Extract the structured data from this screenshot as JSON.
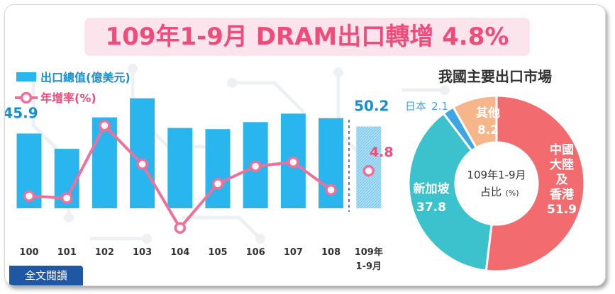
{
  "title": "109年1-9月 DRAM出口轉增 4.8%",
  "read_button": "全文閱讀",
  "chart_data": [
    {
      "type": "bar",
      "categories": [
        "100",
        "101",
        "102",
        "103",
        "104",
        "105",
        "106",
        "107",
        "108",
        "109年 1-9月"
      ],
      "series": [
        {
          "name": "出口總值(億美元)",
          "type": "bar",
          "color": "#29b6ee",
          "values": [
            45.9,
            36.5,
            55.8,
            67.5,
            49.3,
            48.6,
            52.9,
            58.1,
            55.3,
            50.2
          ]
        },
        {
          "name": "年增率(%)",
          "type": "line",
          "color": "#ef7099",
          "values": [
            -7.5,
            -8.5,
            26.8,
            8.0,
            -23.0,
            -1.5,
            7.0,
            9.0,
            -4.5,
            4.8
          ]
        }
      ],
      "data_labels": [
        {
          "index": 0,
          "series": 0,
          "text": "45.9"
        },
        {
          "index": 9,
          "series": 0,
          "text": "50.2"
        },
        {
          "index": 9,
          "series": 1,
          "text": "4.8"
        }
      ]
    },
    {
      "type": "pie",
      "title": "我國主要出口市場",
      "center_label": [
        "109年1-9月",
        "占比",
        "(%)"
      ],
      "slices": [
        {
          "label": "中國大陸及香港",
          "label_lines": [
            "中國",
            "大陸",
            "及",
            "香港"
          ],
          "value": 51.9,
          "color": "#f26b6e"
        },
        {
          "label": "新加坡",
          "label_lines": [
            "新加坡"
          ],
          "value": 37.8,
          "color": "#3bc2cc"
        },
        {
          "label": "日本",
          "label_lines": [
            "日本"
          ],
          "value": 2.1,
          "color": "#3ea6e2"
        },
        {
          "label": "其他",
          "label_lines": [
            "其他"
          ],
          "value": 8.2,
          "color": "#f6b68a"
        }
      ]
    }
  ]
}
